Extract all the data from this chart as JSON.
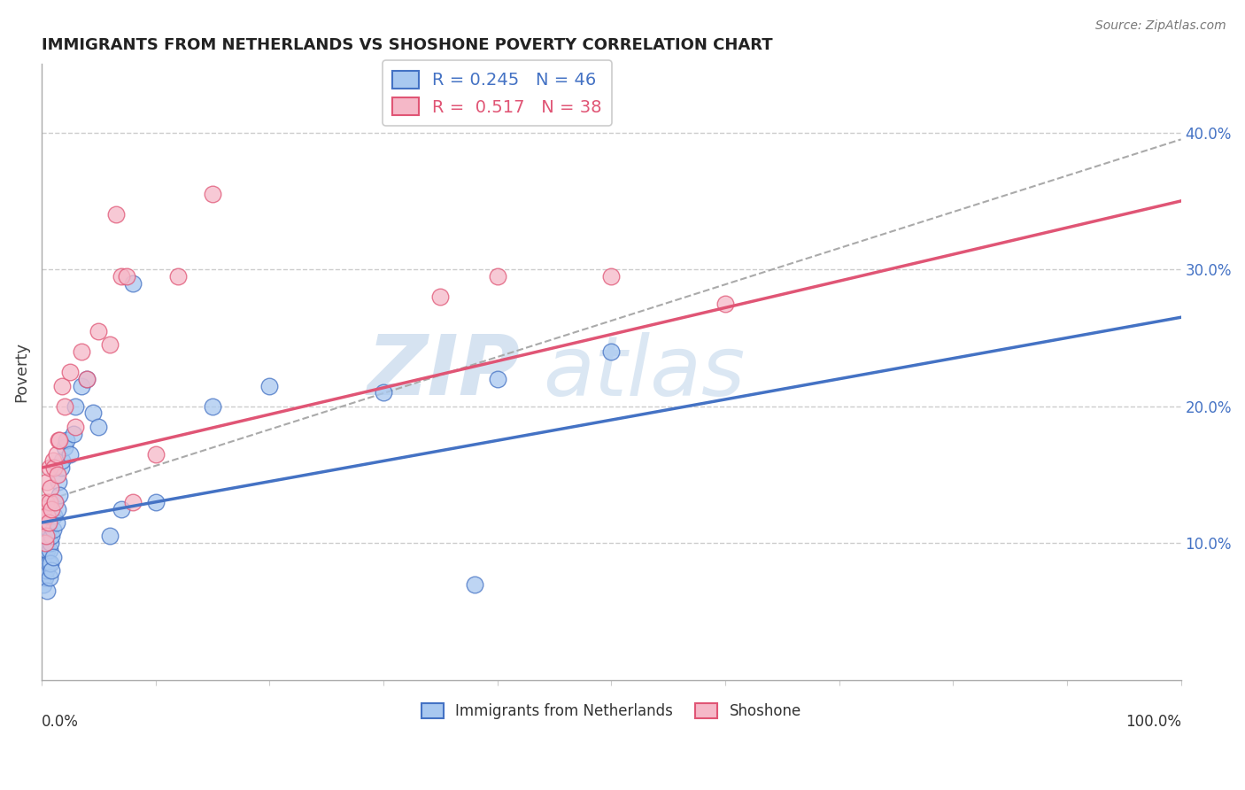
{
  "title": "IMMIGRANTS FROM NETHERLANDS VS SHOSHONE POVERTY CORRELATION CHART",
  "source_text": "Source: ZipAtlas.com",
  "ylabel": "Poverty",
  "right_yticks": [
    0.1,
    0.2,
    0.3,
    0.4
  ],
  "right_yticklabels": [
    "10.0%",
    "20.0%",
    "30.0%",
    "40.0%"
  ],
  "xlim": [
    0.0,
    1.0
  ],
  "ylim": [
    0.0,
    0.45
  ],
  "blue_R": 0.245,
  "blue_N": 46,
  "pink_R": 0.517,
  "pink_N": 38,
  "blue_color": "#A8C8F0",
  "pink_color": "#F5B8C8",
  "blue_line_color": "#4472C4",
  "pink_line_color": "#E05575",
  "watermark_zip": "ZIP",
  "watermark_atlas": "atlas",
  "legend_label_blue": "Immigrants from Netherlands",
  "legend_label_pink": "Shoshone",
  "blue_line_y0": 0.115,
  "blue_line_y1": 0.265,
  "pink_line_y0": 0.155,
  "pink_line_y1": 0.35,
  "dash_line_y0": 0.13,
  "dash_line_y1": 0.395,
  "blue_scatter_x": [
    0.001,
    0.002,
    0.002,
    0.003,
    0.003,
    0.004,
    0.004,
    0.005,
    0.005,
    0.006,
    0.006,
    0.007,
    0.007,
    0.008,
    0.008,
    0.009,
    0.009,
    0.01,
    0.01,
    0.011,
    0.012,
    0.013,
    0.014,
    0.015,
    0.016,
    0.017,
    0.018,
    0.02,
    0.022,
    0.025,
    0.028,
    0.03,
    0.035,
    0.04,
    0.045,
    0.05,
    0.06,
    0.07,
    0.08,
    0.1,
    0.15,
    0.2,
    0.3,
    0.4,
    0.5,
    0.38
  ],
  "blue_scatter_y": [
    0.085,
    0.09,
    0.07,
    0.075,
    0.095,
    0.08,
    0.1,
    0.065,
    0.095,
    0.085,
    0.11,
    0.075,
    0.095,
    0.085,
    0.1,
    0.08,
    0.105,
    0.09,
    0.11,
    0.12,
    0.13,
    0.115,
    0.125,
    0.145,
    0.135,
    0.155,
    0.16,
    0.17,
    0.175,
    0.165,
    0.18,
    0.2,
    0.215,
    0.22,
    0.195,
    0.185,
    0.105,
    0.125,
    0.29,
    0.13,
    0.2,
    0.215,
    0.21,
    0.22,
    0.24,
    0.07
  ],
  "pink_scatter_x": [
    0.001,
    0.002,
    0.003,
    0.004,
    0.004,
    0.005,
    0.005,
    0.006,
    0.007,
    0.007,
    0.008,
    0.009,
    0.01,
    0.011,
    0.012,
    0.013,
    0.014,
    0.015,
    0.016,
    0.018,
    0.02,
    0.025,
    0.03,
    0.035,
    0.04,
    0.05,
    0.06,
    0.065,
    0.07,
    0.075,
    0.08,
    0.1,
    0.12,
    0.15,
    0.35,
    0.4,
    0.5,
    0.6
  ],
  "pink_scatter_y": [
    0.115,
    0.125,
    0.1,
    0.13,
    0.105,
    0.145,
    0.12,
    0.115,
    0.13,
    0.155,
    0.14,
    0.125,
    0.16,
    0.155,
    0.13,
    0.165,
    0.15,
    0.175,
    0.175,
    0.215,
    0.2,
    0.225,
    0.185,
    0.24,
    0.22,
    0.255,
    0.245,
    0.34,
    0.295,
    0.295,
    0.13,
    0.165,
    0.295,
    0.355,
    0.28,
    0.295,
    0.295,
    0.275
  ],
  "grid_color": "#CCCCCC",
  "background_color": "#FFFFFF"
}
